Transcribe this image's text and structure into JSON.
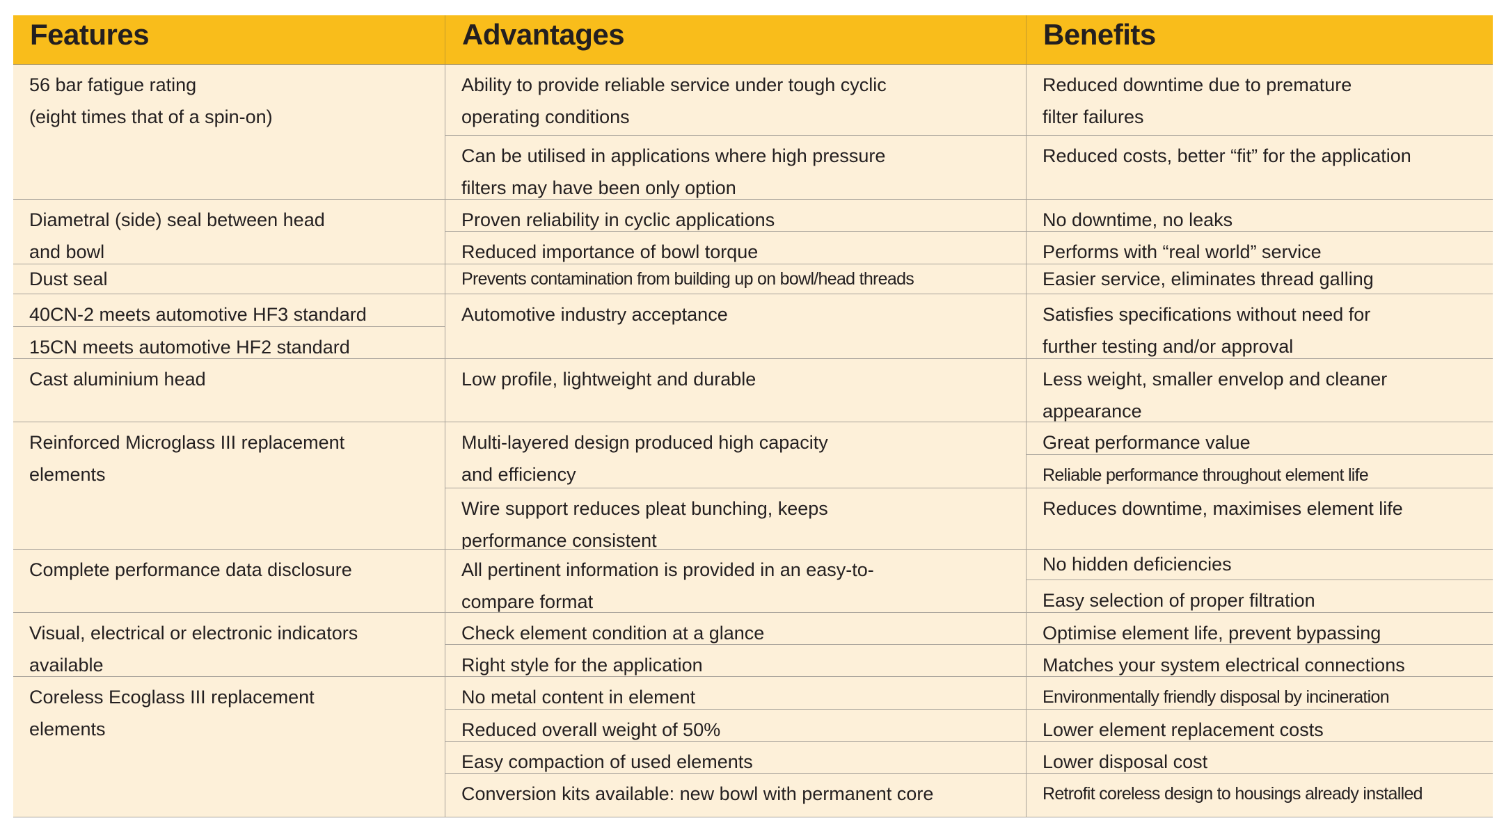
{
  "headers": {
    "features": "Features",
    "advantages": "Advantages",
    "benefits": "Benefits"
  },
  "features": [
    "56 bar fatigue rating\n(eight times that of a spin-on)",
    "Diametral (side) seal between head\nand bowl",
    "Dust seal",
    "40CN-2 meets automotive HF3 standard",
    "15CN meets automotive HF2 standard",
    "Cast aluminium head",
    "Reinforced Microglass III replacement\nelements",
    "Complete performance data disclosure",
    "Visual, electrical or electronic indicators\navailable",
    "Coreless Ecoglass III replacement\nelements"
  ],
  "advantages": [
    "Ability to provide reliable service under tough cyclic\noperating conditions",
    "Can be utilised in applications where high pressure\nfilters may have been only option",
    "Proven reliability in cyclic applications",
    "Reduced importance of bowl torque",
    "Prevents contamination from building up on bowl/head threads",
    "Automotive industry acceptance",
    "Low profile, lightweight and durable",
    "Multi-layered design produced high capacity\nand efficiency",
    "Wire support reduces pleat bunching, keeps\nperformance consistent",
    "All pertinent information is provided in an easy-to-\ncompare format",
    "Check element condition at a glance",
    "Right style for the application",
    "No metal content in element",
    "Reduced overall weight of 50%",
    "Easy compaction of used elements",
    "Conversion kits available: new bowl with permanent core"
  ],
  "benefits": [
    "Reduced downtime due to premature\nfilter failures",
    "Reduced costs, better “fit” for the application",
    "No downtime, no leaks",
    "Performs with “real world” service",
    "Easier service, eliminates thread galling",
    "Satisfies specifications without need for\nfurther testing and/or approval",
    "Less weight, smaller envelop and cleaner\nappearance",
    "Great performance value",
    "Reliable performance throughout element life",
    "Reduces downtime, maximises element life",
    "No hidden deficiencies",
    "Easy selection of proper filtration",
    "Optimise element life, prevent bypassing",
    "Matches your system electrical connections",
    "Environmentally friendly disposal by incineration",
    "Lower element replacement costs",
    "Lower disposal cost",
    "Retrofit coreless design to housings already installed"
  ],
  "colors": {
    "header": "#f9bd1b",
    "body": "#fdf0d9",
    "text": "#231f20"
  }
}
